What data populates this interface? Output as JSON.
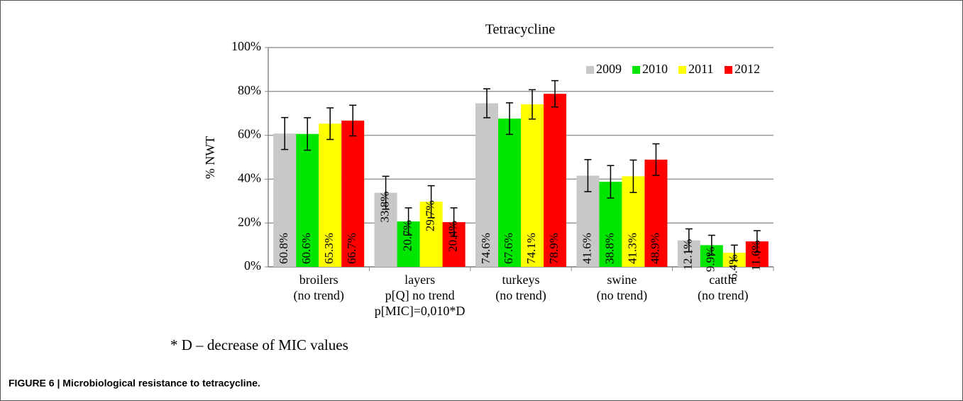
{
  "chart_data": {
    "type": "bar",
    "title": "Tetracycline",
    "y_label": "% NWT",
    "categories": [
      [
        "broilers",
        "(no trend)"
      ],
      [
        "layers",
        "p[Q] no trend",
        "p[MIC]=0,010*D"
      ],
      [
        "turkeys",
        "(no trend)"
      ],
      [
        "swine",
        "(no trend)"
      ],
      [
        "cattle",
        "(no trend)"
      ]
    ],
    "series": [
      {
        "name": "2009",
        "color": "#c8c8c8",
        "values": [
          60.8,
          33.8,
          74.6,
          41.6,
          12.1
        ],
        "value_labels": [
          "60.8%",
          "33.8%",
          "74.6%",
          "41.6%",
          "12.1%"
        ],
        "errors": [
          7.3,
          7.5,
          6.6,
          7.3,
          5.2
        ]
      },
      {
        "name": "2010",
        "color": "#00e600",
        "values": [
          60.6,
          20.7,
          67.6,
          38.8,
          9.9
        ],
        "value_labels": [
          "60.6%",
          "20.7%",
          "67.6%",
          "38.8%",
          "9.9%"
        ],
        "errors": [
          7.4,
          6.2,
          7.2,
          7.4,
          4.5
        ]
      },
      {
        "name": "2011",
        "color": "#ffff00",
        "values": [
          65.3,
          29.7,
          74.1,
          41.3,
          6.4
        ],
        "value_labels": [
          "65.3%",
          "29.7%",
          "74.1%",
          "41.3%",
          "6.4%"
        ],
        "errors": [
          7.2,
          7.3,
          6.7,
          7.4,
          3.5
        ]
      },
      {
        "name": "2012",
        "color": "#ff0000",
        "values": [
          66.7,
          20.4,
          78.9,
          48.9,
          11.6
        ],
        "value_labels": [
          "66.7%",
          "20.4%",
          "78.9%",
          "48.9%",
          "11.6%"
        ],
        "errors": [
          7.0,
          6.5,
          6.0,
          7.2,
          4.9
        ]
      }
    ],
    "ylim": [
      0,
      100
    ],
    "yticks": [
      {
        "value": 0,
        "label": "0%"
      },
      {
        "value": 20,
        "label": "20%"
      },
      {
        "value": 40,
        "label": "40%"
      },
      {
        "value": 60,
        "label": "60%"
      },
      {
        "value": 80,
        "label": "80%"
      },
      {
        "value": 100,
        "label": "100%"
      }
    ],
    "grid": true,
    "legend": "top-right"
  },
  "footnote": "* D – decrease of MIC values",
  "caption": "FIGURE 6 | Microbiological resistance to tetracycline."
}
